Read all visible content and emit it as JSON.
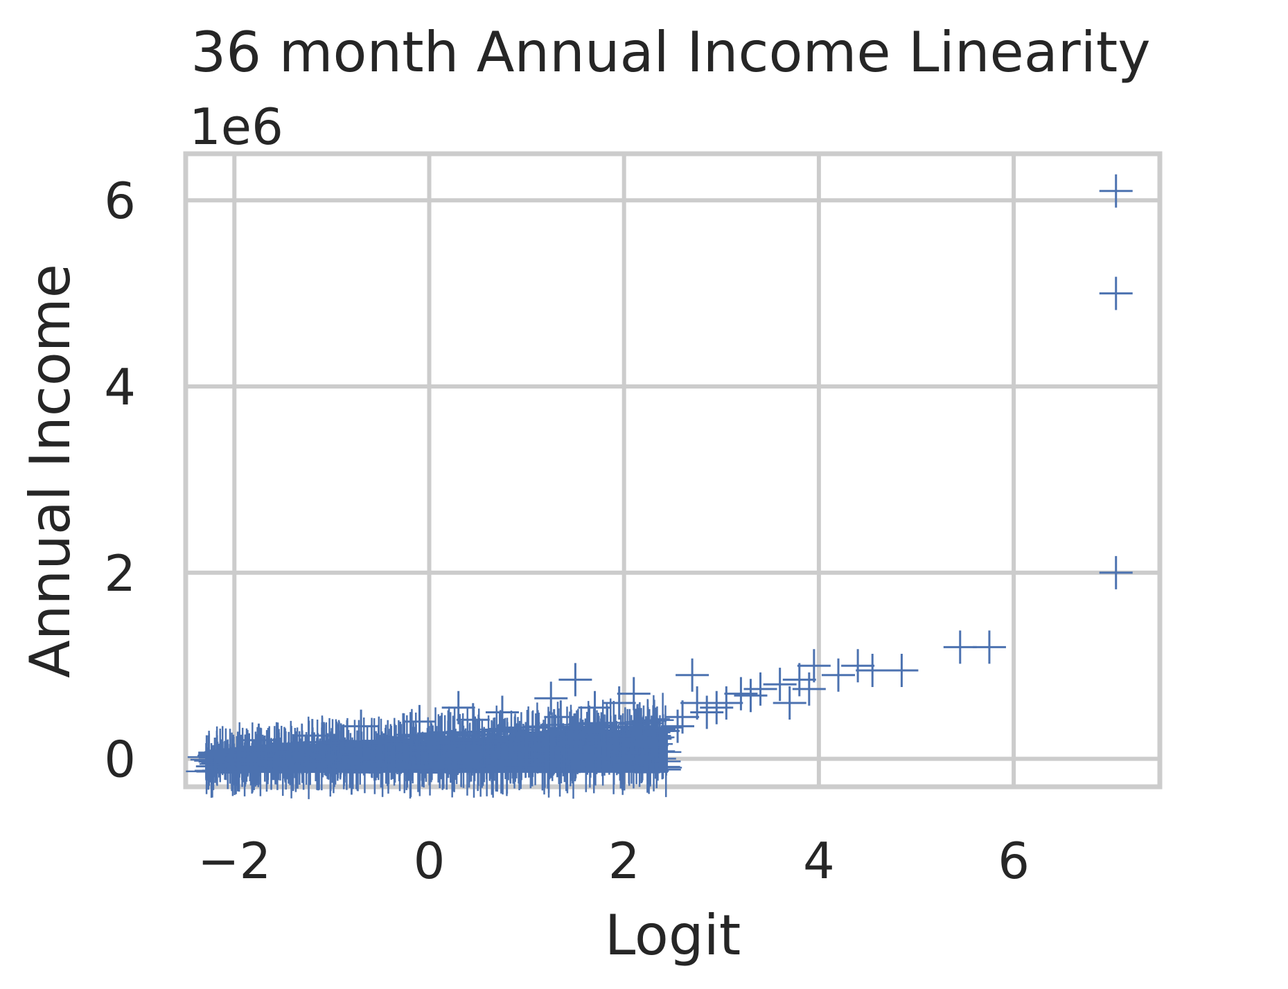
{
  "chart_data": {
    "type": "scatter",
    "title": "36 month Annual Income Linearity",
    "xlabel": "Logit",
    "ylabel": "Annual Income",
    "y_offset_label": "1e6",
    "y_multiplier": 1000000,
    "xlim": [
      -2.5,
      7.5
    ],
    "ylim": [
      -300000,
      6500000
    ],
    "x_ticks": [
      -2,
      0,
      2,
      4,
      6
    ],
    "x_tick_labels": [
      "−2",
      "0",
      "2",
      "4",
      "6"
    ],
    "y_ticks": [
      0,
      2000000,
      4000000,
      6000000
    ],
    "y_tick_labels": [
      "0",
      "2",
      "4",
      "6"
    ],
    "grid": true,
    "marker": "+",
    "series": [
      {
        "color": "#4c72b0",
        "points": [
          [
            7.05,
            6100000
          ],
          [
            7.05,
            5000000
          ],
          [
            7.05,
            2000000
          ],
          [
            5.45,
            1200000
          ],
          [
            5.75,
            1200000
          ],
          [
            4.85,
            950000
          ],
          [
            4.55,
            950000
          ],
          [
            4.4,
            1000000
          ],
          [
            4.2,
            900000
          ],
          [
            3.95,
            1000000
          ],
          [
            3.8,
            850000
          ],
          [
            3.6,
            800000
          ],
          [
            3.9,
            750000
          ],
          [
            3.4,
            750000
          ],
          [
            3.2,
            700000
          ],
          [
            3.7,
            600000
          ],
          [
            3.3,
            680000
          ],
          [
            3.05,
            600000
          ],
          [
            2.95,
            550000
          ],
          [
            2.7,
            900000
          ],
          [
            2.75,
            600000
          ],
          [
            2.85,
            500000
          ],
          [
            2.6,
            450000
          ],
          [
            2.55,
            350000
          ],
          [
            2.4,
            300000
          ],
          [
            1.5,
            850000
          ],
          [
            1.25,
            650000
          ],
          [
            0.3,
            550000
          ],
          [
            2.1,
            700000
          ],
          [
            1.95,
            600000
          ],
          [
            1.7,
            550000
          ],
          [
            1.35,
            450000
          ],
          [
            0.75,
            500000
          ],
          [
            0.45,
            420000
          ],
          [
            -0.1,
            400000
          ],
          [
            -0.7,
            350000
          ],
          [
            -1.2,
            250000
          ],
          [
            -1.75,
            200000
          ],
          [
            -2.2,
            50000
          ]
        ]
      }
    ],
    "dense_band": {
      "description_key": "bulk",
      "x_start": -2.3,
      "x_end": 2.45,
      "y_low": -150000,
      "y_high_start": 100000,
      "y_high_mid": 280000,
      "y_high_end": 450000
    }
  }
}
